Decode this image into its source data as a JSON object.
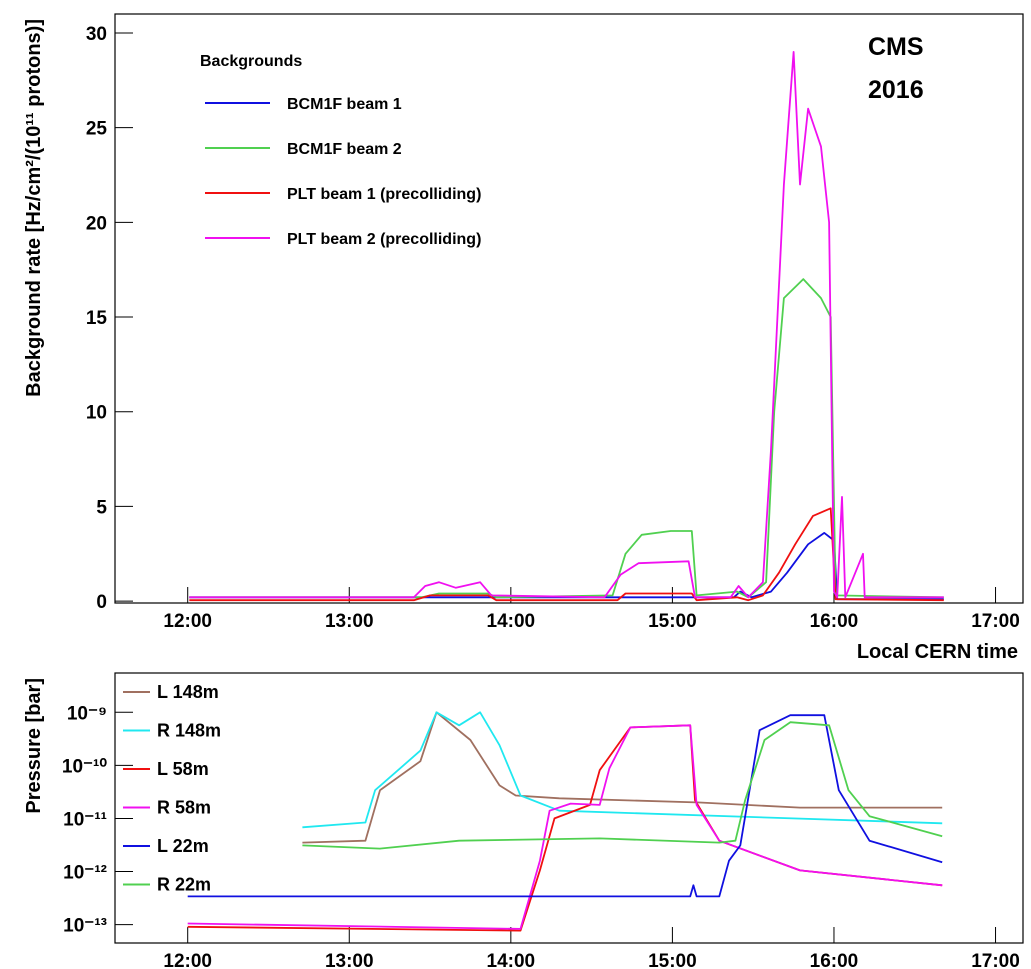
{
  "chart_data": [
    {
      "type": "line",
      "xlabel": "Local CERN time",
      "ylabel": "Background rate [Hz/cm²/(10¹¹ protons)]",
      "annotation": [
        "CMS",
        "2016"
      ],
      "legend_title": "Backgrounds",
      "legend": "upper left",
      "xlim": [
        11.55,
        17.17
      ],
      "ylim": [
        -0.1,
        31
      ],
      "xticks": [
        {
          "value": 12,
          "label": "12:00"
        },
        {
          "value": 13,
          "label": "13:00"
        },
        {
          "value": 14,
          "label": "14:00"
        },
        {
          "value": 15,
          "label": "15:00"
        },
        {
          "value": 16,
          "label": "16:00"
        },
        {
          "value": 17,
          "label": "17:00"
        }
      ],
      "yticks": [
        0,
        5,
        10,
        15,
        20,
        25,
        30
      ],
      "series": [
        {
          "name": "BCM1F beam 1",
          "color": "#1010e0",
          "x": [
            12.01,
            15.38,
            15.42,
            15.49,
            15.61,
            15.71,
            15.84,
            15.94,
            16.0,
            16.02,
            16.68
          ],
          "values": [
            0.2,
            0.2,
            0.5,
            0.2,
            0.5,
            1.5,
            3.0,
            3.6,
            3.2,
            0.1,
            0.1
          ]
        },
        {
          "name": "BCM1F beam 2",
          "color": "#50d050",
          "x": [
            12.01,
            13.45,
            13.555,
            13.86,
            13.91,
            14.63,
            14.71,
            14.81,
            14.99,
            15.12,
            15.15,
            15.4,
            15.47,
            15.58,
            15.63,
            15.69,
            15.81,
            15.92,
            15.98,
            16.01,
            16.68
          ],
          "values": [
            0.2,
            0.2,
            0.4,
            0.4,
            0.2,
            0.3,
            2.5,
            3.5,
            3.7,
            3.7,
            0.3,
            0.5,
            0.2,
            1,
            10,
            16,
            17,
            16,
            15,
            0.3,
            0.2
          ]
        },
        {
          "name": "PLT beam 1 (precolliding)",
          "color": "#f01010",
          "x": [
            12.01,
            13.4,
            13.5,
            13.86,
            13.91,
            14.66,
            14.71,
            15.12,
            15.15,
            15.4,
            15.47,
            15.56,
            15.66,
            15.76,
            15.87,
            15.98,
            16.01,
            16.68
          ],
          "values": [
            0.05,
            0.05,
            0.3,
            0.3,
            0.05,
            0.05,
            0.4,
            0.4,
            0.05,
            0.2,
            0.05,
            0.3,
            1.5,
            3,
            4.5,
            4.9,
            0.1,
            0.05
          ]
        },
        {
          "name": "PLT beam 2 (precolliding)",
          "color": "#f010f0",
          "x": [
            12.01,
            13.4,
            13.47,
            13.555,
            13.66,
            13.81,
            13.88,
            14.58,
            14.68,
            14.79,
            15.1,
            15.14,
            15.36,
            15.41,
            15.47,
            15.56,
            15.61,
            15.69,
            15.75,
            15.79,
            15.84,
            15.92,
            15.97,
            16.0,
            16.02,
            16.05,
            16.07,
            16.18,
            16.19,
            16.68
          ],
          "values": [
            0.2,
            0.2,
            0.8,
            1.0,
            0.7,
            1.0,
            0.3,
            0.2,
            1.4,
            2.0,
            2.1,
            0.2,
            0.2,
            0.8,
            0.2,
            1.0,
            8,
            22,
            29,
            22,
            26,
            24,
            20,
            0.5,
            0.2,
            5.5,
            0.2,
            2.5,
            0.2,
            0.2
          ]
        }
      ]
    },
    {
      "type": "line",
      "ylabel": "Pressure [bar]",
      "yscale": "log",
      "legend": "upper left",
      "xlim": [
        11.55,
        17.17
      ],
      "ylim": [
        4.5e-14,
        5.5e-09
      ],
      "xticks": [
        {
          "value": 12,
          "label": "12:00"
        },
        {
          "value": 13,
          "label": "13:00"
        },
        {
          "value": 14,
          "label": "14:00"
        },
        {
          "value": 15,
          "label": "15:00"
        },
        {
          "value": 16,
          "label": "16:00"
        },
        {
          "value": 17,
          "label": "17:00"
        }
      ],
      "yticks": [
        {
          "value": 1e-13,
          "label": "10⁻¹³"
        },
        {
          "value": 1e-12,
          "label": "10⁻¹²"
        },
        {
          "value": 1e-11,
          "label": "10⁻¹¹"
        },
        {
          "value": 1e-10,
          "label": "10⁻¹⁰"
        },
        {
          "value": 1e-09,
          "label": "10⁻⁹"
        }
      ],
      "series": [
        {
          "name": "L 148m",
          "color": "#a07060",
          "x": [
            12.71,
            13.1,
            13.19,
            13.44,
            13.54,
            13.75,
            13.93,
            14.03,
            14.3,
            15.17,
            15.79,
            16.67
          ],
          "values": [
            3.5e-12,
            3.8e-12,
            3.4e-11,
            1.2e-10,
            1e-09,
            3e-10,
            4.2e-11,
            2.7e-11,
            2.4e-11,
            2e-11,
            1.6e-11,
            1.6e-11
          ]
        },
        {
          "name": "R 148m",
          "color": "#20e8f0",
          "x": [
            12.71,
            13.1,
            13.16,
            13.44,
            13.54,
            13.68,
            13.81,
            13.93,
            14.06,
            14.3,
            16.67
          ],
          "values": [
            6.8e-12,
            8.4e-12,
            3.4e-11,
            1.9e-10,
            1e-09,
            5.7e-10,
            1e-09,
            2.4e-10,
            2.7e-11,
            1.4e-11,
            8.1e-12
          ]
        },
        {
          "name": "L 58m",
          "color": "#f01010",
          "x": [
            12.0,
            14.06,
            14.18,
            14.27,
            14.49,
            14.55,
            14.74,
            15.11,
            15.14,
            15.29,
            15.79,
            16.67
          ],
          "values": [
            9.1e-14,
            7.7e-14,
            1.05e-12,
            1e-11,
            1.8e-11,
            8.1e-11,
            5.2e-10,
            5.7e-10,
            2.2e-11,
            3.8e-12,
            1.05e-12,
            5.5e-13
          ]
        },
        {
          "name": "R 58m",
          "color": "#f010f0",
          "x": [
            12.0,
            14.06,
            14.18,
            14.24,
            14.37,
            14.55,
            14.61,
            14.74,
            15.11,
            15.15,
            15.29,
            15.79,
            16.67
          ],
          "values": [
            1.05e-13,
            8.3e-14,
            1.6e-12,
            1.4e-11,
            1.9e-11,
            1.8e-11,
            8.8e-11,
            5.2e-10,
            5.7e-10,
            1.8e-11,
            3.8e-12,
            1.05e-12,
            5.5e-13
          ]
        },
        {
          "name": "L 22m",
          "color": "#1010e0",
          "x": [
            12.0,
            15.11,
            15.13,
            15.15,
            15.29,
            15.35,
            15.42,
            15.54,
            15.73,
            15.94,
            16.03,
            16.22,
            16.67
          ],
          "values": [
            3.4e-13,
            3.4e-13,
            5.5e-13,
            3.4e-13,
            3.4e-13,
            1.6e-12,
            3.1e-12,
            4.6e-10,
            8.8e-10,
            8.8e-10,
            3.4e-11,
            3.8e-12,
            1.5e-12
          ]
        },
        {
          "name": "R 22m",
          "color": "#50d050",
          "x": [
            12.71,
            13.19,
            13.68,
            14.55,
            15.29,
            15.39,
            15.45,
            15.57,
            15.73,
            15.97,
            16.09,
            16.22,
            16.67
          ],
          "values": [
            3.1e-12,
            2.7e-12,
            3.8e-12,
            4.2e-12,
            3.5e-12,
            3.8e-12,
            2.2e-11,
            3e-10,
            6.5e-10,
            5.7e-10,
            3.4e-11,
            1.1e-11,
            4.6e-12
          ]
        }
      ]
    }
  ]
}
